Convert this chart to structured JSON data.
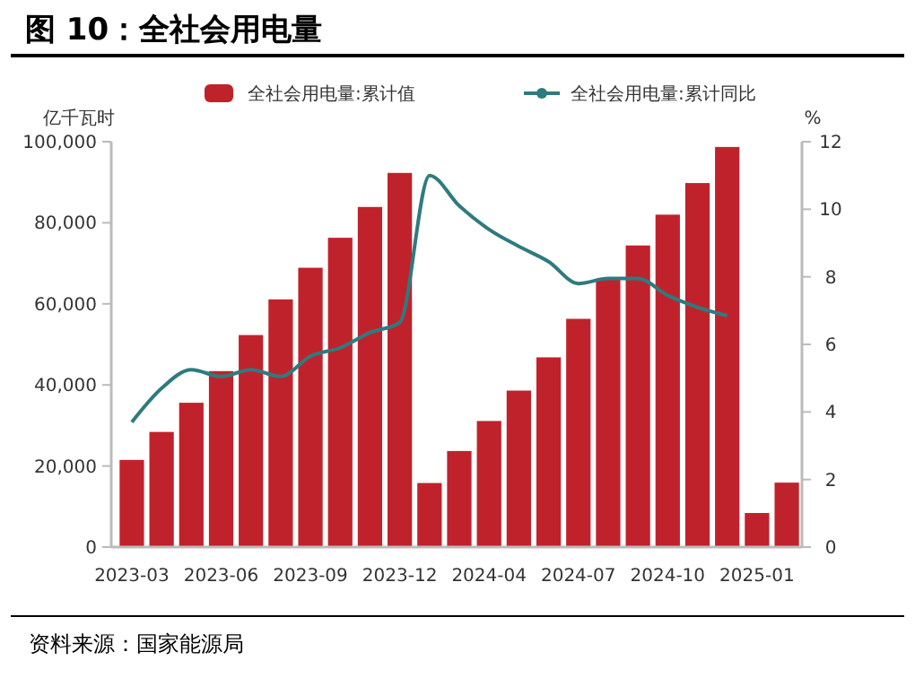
{
  "chart_data": {
    "type": "bar",
    "title": "图 10：全社会用电量",
    "ylabel": "亿千瓦时",
    "y2label": "%",
    "categories": [
      "2023-03",
      null,
      null,
      "2023-06",
      null,
      null,
      "2023-09",
      null,
      null,
      "2023-12",
      null,
      null,
      "2024-04",
      null,
      null,
      "2024-07",
      null,
      null,
      "2024-10",
      null,
      null,
      "2025-01",
      null
    ],
    "series": [
      {
        "name": "全社会用电量:累计值",
        "color": "#c0222c",
        "values": [
          21500,
          28400,
          35600,
          43400,
          52300,
          61100,
          68900,
          76300,
          83900,
          92300,
          15800,
          23700,
          31100,
          38600,
          46800,
          56300,
          66100,
          74400,
          82000,
          89800,
          98700,
          8400,
          15900
        ]
      },
      {
        "name": "全社会用电量:累计同比",
        "type": "line",
        "axis": "y2",
        "color": "#2e7b7e",
        "values": [
          3.7,
          4.7,
          5.25,
          5.05,
          5.25,
          5.05,
          5.65,
          5.9,
          6.35,
          6.65,
          11.0,
          10.1,
          9.4,
          8.9,
          8.45,
          7.8,
          7.95,
          7.95,
          7.45,
          7.1,
          6.85,
          null,
          null
        ]
      }
    ],
    "ylim": [
      0,
      100000
    ],
    "yticks": [
      0,
      {
        "value": 20000,
        "label": "20,000"
      },
      {
        "value": 40000,
        "label": "40,000"
      },
      {
        "value": 60000,
        "label": "60,000"
      },
      {
        "value": 80000,
        "label": "80,000"
      },
      {
        "value": 100000,
        "label": "100,000"
      }
    ],
    "y2lim": [
      0,
      12
    ],
    "y2ticks": [
      0,
      2,
      4,
      6,
      8,
      10,
      12
    ],
    "grid": false,
    "legend": "top",
    "marker": "none",
    "line_style": "solid",
    "annotations": [
      "资料来源：国家能源局"
    ]
  }
}
